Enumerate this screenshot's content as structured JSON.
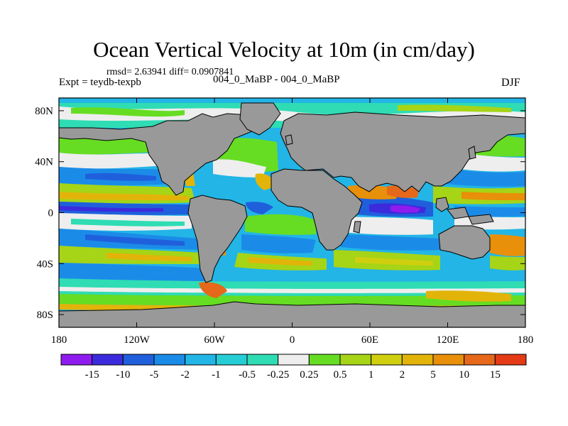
{
  "title": "Ocean Vertical Velocity at 10m (in cm/day)",
  "stats": "rmsd= 2.63941 diff= 0.0907841",
  "experiment": "Expt = teydb-texpb",
  "center_label": "004_0_MaBP - 004_0_MaBP",
  "season": "DJF",
  "lat_ticks": [
    {
      "lat": 80,
      "label": "80N"
    },
    {
      "lat": 40,
      "label": "40N"
    },
    {
      "lat": 0,
      "label": "0"
    },
    {
      "lat": -40,
      "label": "40S"
    },
    {
      "lat": -80,
      "label": "80S"
    }
  ],
  "lon_ticks": [
    {
      "lon": -180,
      "label": "180"
    },
    {
      "lon": -120,
      "label": "120W"
    },
    {
      "lon": -60,
      "label": "60W"
    },
    {
      "lon": 0,
      "label": "0"
    },
    {
      "lon": 60,
      "label": "60E"
    },
    {
      "lon": 120,
      "label": "120E"
    },
    {
      "lon": 180,
      "label": "180"
    }
  ],
  "colorbar": {
    "colors": [
      "#8f1cef",
      "#3c2bdc",
      "#1f5fdc",
      "#1b8be8",
      "#22b5e6",
      "#26cdd5",
      "#2fdcb4",
      "#eeeeee",
      "#66dd22",
      "#a6d416",
      "#cfcf10",
      "#e2b40a",
      "#e8900a",
      "#e6681a",
      "#e43a16"
    ],
    "labels": [
      "-15",
      "-10",
      "-5",
      "-2",
      "-1",
      "-0.5",
      "-0.25",
      "0.25",
      "0.5",
      "1",
      "2",
      "5",
      "10",
      "15"
    ]
  },
  "land_color": "#999999"
}
